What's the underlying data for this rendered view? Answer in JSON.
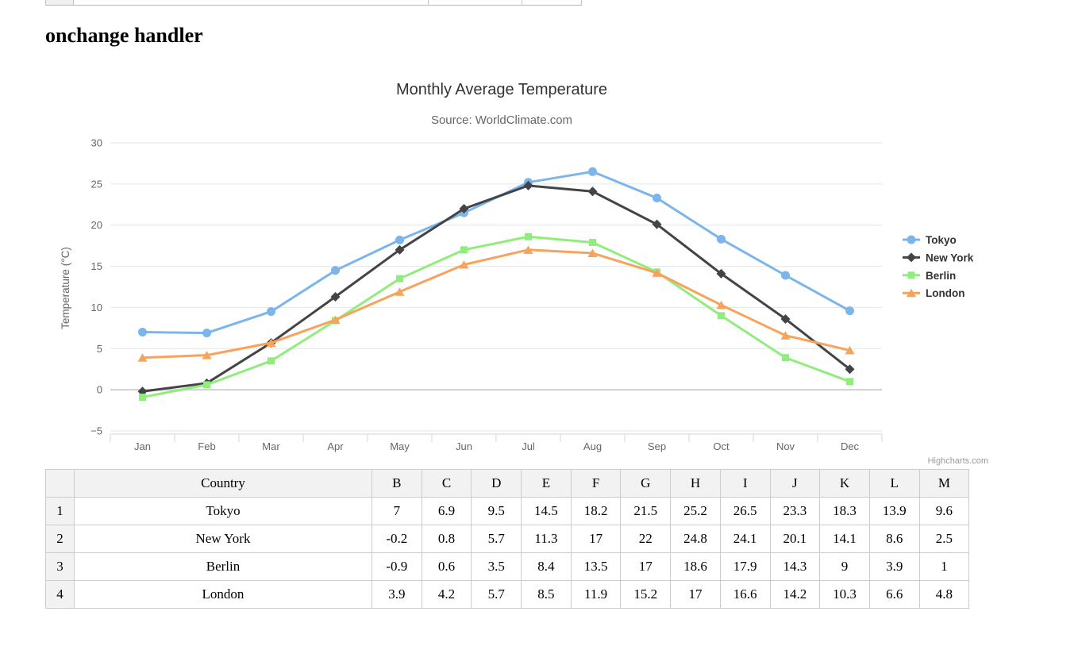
{
  "page": {
    "heading": "onchange handler"
  },
  "chart_data": {
    "type": "line",
    "title": "Monthly Average Temperature",
    "subtitle": "Source: WorldClimate.com",
    "xlabel": "",
    "ylabel": "Temperature (°C)",
    "categories": [
      "Jan",
      "Feb",
      "Mar",
      "Apr",
      "May",
      "Jun",
      "Jul",
      "Aug",
      "Sep",
      "Oct",
      "Nov",
      "Dec"
    ],
    "ylim": [
      -5,
      30
    ],
    "yticks": [
      -5,
      0,
      5,
      10,
      15,
      20,
      25,
      30
    ],
    "grid": true,
    "legend_position": "right",
    "credits": "Highcharts.com",
    "colors": {
      "tokyo": "#7cb5ec",
      "new_york": "#434348",
      "berlin": "#90ed7d",
      "london": "#f7a35c"
    },
    "series": [
      {
        "name": "Tokyo",
        "color": "#7cb5ec",
        "marker": "circle",
        "values": [
          7,
          6.9,
          9.5,
          14.5,
          18.2,
          21.5,
          25.2,
          26.5,
          23.3,
          18.3,
          13.9,
          9.6
        ]
      },
      {
        "name": "New York",
        "color": "#434348",
        "marker": "diamond",
        "values": [
          -0.2,
          0.8,
          5.7,
          11.3,
          17,
          22,
          24.8,
          24.1,
          20.1,
          14.1,
          8.6,
          2.5
        ]
      },
      {
        "name": "Berlin",
        "color": "#90ed7d",
        "marker": "square",
        "values": [
          -0.9,
          0.6,
          3.5,
          8.4,
          13.5,
          17,
          18.6,
          17.9,
          14.3,
          9,
          3.9,
          1
        ]
      },
      {
        "name": "London",
        "color": "#f7a35c",
        "marker": "triangle",
        "values": [
          3.9,
          4.2,
          5.7,
          8.5,
          11.9,
          15.2,
          17,
          16.6,
          14.2,
          10.3,
          6.6,
          4.8
        ]
      }
    ]
  },
  "table": {
    "corner_label": "",
    "headers": [
      "Country",
      "B",
      "C",
      "D",
      "E",
      "F",
      "G",
      "H",
      "I",
      "J",
      "K",
      "L",
      "M"
    ],
    "rows": [
      {
        "row_number": "1",
        "country": "Tokyo",
        "values": [
          7,
          6.9,
          9.5,
          14.5,
          18.2,
          21.5,
          25.2,
          26.5,
          23.3,
          18.3,
          13.9,
          9.6
        ]
      },
      {
        "row_number": "2",
        "country": "New York",
        "values": [
          -0.2,
          0.8,
          5.7,
          11.3,
          17,
          22,
          24.8,
          24.1,
          20.1,
          14.1,
          8.6,
          2.5
        ]
      },
      {
        "row_number": "3",
        "country": "Berlin",
        "values": [
          -0.9,
          0.6,
          3.5,
          8.4,
          13.5,
          17,
          18.6,
          17.9,
          14.3,
          9,
          3.9,
          1
        ]
      },
      {
        "row_number": "4",
        "country": "London",
        "values": [
          3.9,
          4.2,
          5.7,
          8.5,
          11.9,
          15.2,
          17,
          16.6,
          14.2,
          10.3,
          6.6,
          4.8
        ]
      }
    ]
  }
}
